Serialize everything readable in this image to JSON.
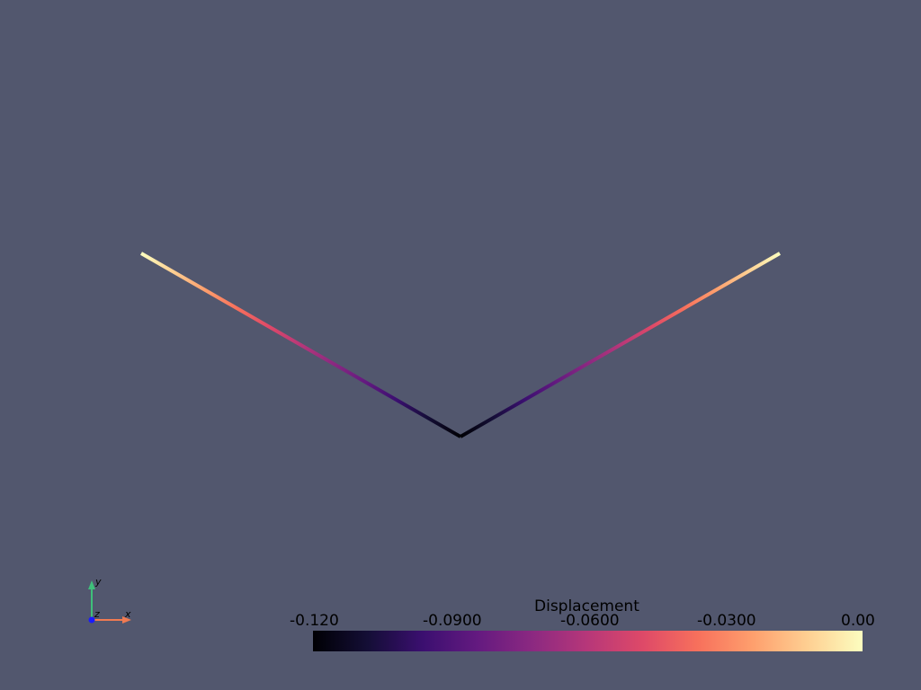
{
  "scene": {
    "background": "#52576e",
    "colormap": "magma",
    "line_width": 4,
    "nodes": [
      {
        "x": -1.0,
        "y": 0.0,
        "displacement": 0.0
      },
      {
        "x": 0.0,
        "y": -0.577,
        "displacement": -0.12
      },
      {
        "x": 1.0,
        "y": 0.0,
        "displacement": 0.0
      }
    ]
  },
  "scalar_bar": {
    "title": "Displacement",
    "range": [
      -0.12,
      0.0
    ],
    "ticks": [
      "-0.120",
      "-0.0900",
      "-0.0600",
      "-0.0300",
      "0.00"
    ]
  },
  "axes_widget": {
    "x_label": "x",
    "y_label": "y",
    "z_label": "z",
    "x_color": "#f07a52",
    "y_color": "#3fbf7a",
    "z_color": "#1a1aff"
  }
}
